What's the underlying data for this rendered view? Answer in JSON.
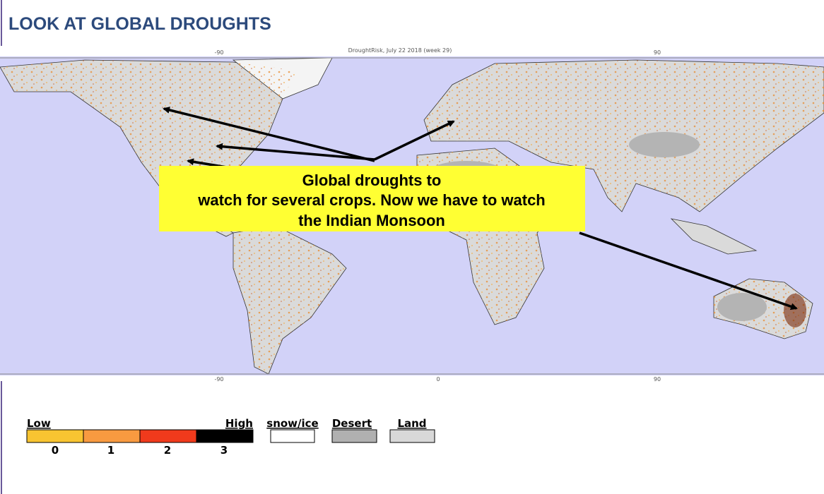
{
  "header": {
    "title": "LOOK AT GLOBAL DROUGHTS"
  },
  "map": {
    "caption": "DroughtRisk,  July 22 2018 (week 29)",
    "top_labels": [
      "-90",
      "90"
    ],
    "bottom_labels": [
      "-90",
      "0",
      "90"
    ]
  },
  "callout": {
    "lines": [
      "Global droughts to",
      "watch for several crops. Now we have to watch",
      "the Indian Monsoon"
    ]
  },
  "legend": {
    "low": "Low",
    "high": "High",
    "levels": [
      "0",
      "1",
      "2",
      "3"
    ],
    "classes": [
      "snow/ice",
      "Desert",
      "Land"
    ]
  }
}
